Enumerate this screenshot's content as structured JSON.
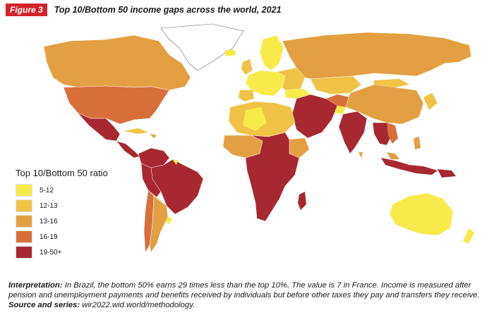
{
  "figure": {
    "badge": "Figure 3",
    "title": "Top 10/Bottom 50 income gaps across the world, 2021"
  },
  "legend": {
    "title": "Top 10/Bottom 50 ratio",
    "items": [
      {
        "label": "5-12",
        "color": "#f7ea4a"
      },
      {
        "label": "12-13",
        "color": "#f0c245"
      },
      {
        "label": "13-16",
        "color": "#e3a042"
      },
      {
        "label": "16-19",
        "color": "#d86f3a"
      },
      {
        "label": "19-50+",
        "color": "#a82831"
      }
    ]
  },
  "footnote": {
    "interpretation_label": "Interpretation:",
    "interpretation_text": " In Brazil, the bottom 50% earns 29 times less than the top 10%. The value is 7 in France. Income is measured after pension and unemployment payments and benefits received by individuals but before other taxes they pay and transfers they receive.",
    "source_label": "Source and series:",
    "source_text": " wir2022.wid.world/methodology."
  }
}
